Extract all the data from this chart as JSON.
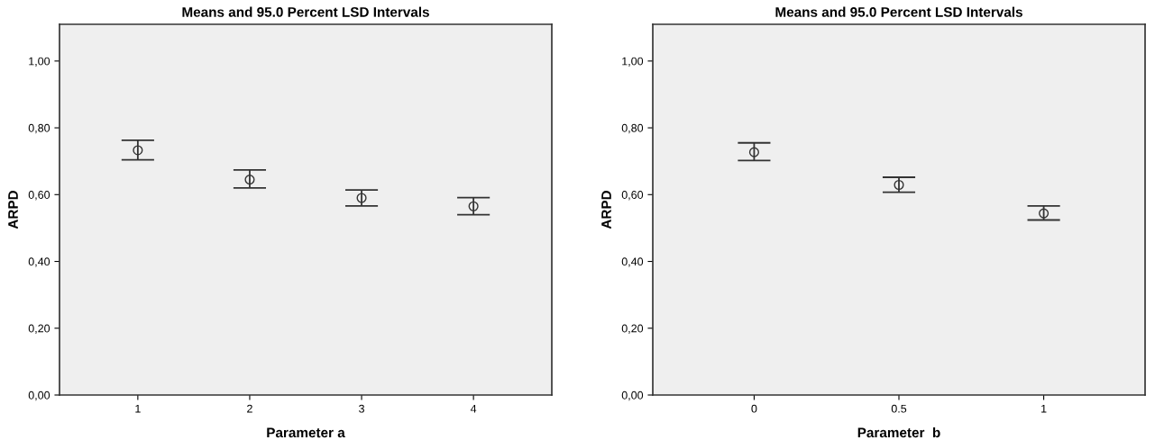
{
  "chart_data": [
    {
      "type": "scatter",
      "title": "Means and 95.0 Percent LSD Intervals",
      "xlabel": "Parameter a",
      "ylabel": "ARPD",
      "categories": [
        "1",
        "2",
        "3",
        "4"
      ],
      "series": [
        {
          "color": "#333333",
          "values": [
            0.733,
            0.645,
            0.59,
            0.565
          ],
          "errors": [
            [
              0.704,
              0.763
            ],
            [
              0.62,
              0.674
            ],
            [
              0.566,
              0.614
            ],
            [
              0.54,
              0.591
            ]
          ]
        }
      ],
      "ylim": [
        0,
        1.11
      ],
      "yticks": [
        {
          "value": 0,
          "label": "0,00"
        },
        {
          "value": 0.2,
          "label": "0,20"
        },
        {
          "value": 0.4,
          "label": "0,40"
        },
        {
          "value": 0.6,
          "label": "0,60"
        },
        {
          "value": 0.8,
          "label": "0,80"
        },
        {
          "value": 1.0,
          "label": "1,00"
        }
      ],
      "marker": "circle",
      "grid": false
    },
    {
      "type": "scatter",
      "title": "Means and 95.0 Percent LSD Intervals",
      "xlabel": "Parameter  b",
      "ylabel": "ARPD",
      "categories": [
        "0",
        "0.5",
        "1"
      ],
      "series": [
        {
          "color": "#333333",
          "values": [
            0.727,
            0.629,
            0.544
          ],
          "errors": [
            [
              0.702,
              0.755
            ],
            [
              0.607,
              0.652
            ],
            [
              0.524,
              0.566
            ]
          ]
        }
      ],
      "ylim": [
        0,
        1.11
      ],
      "yticks": [
        {
          "value": 0,
          "label": "0,00"
        },
        {
          "value": 0.2,
          "label": "0,20"
        },
        {
          "value": 0.4,
          "label": "0,40"
        },
        {
          "value": 0.6,
          "label": "0,60"
        },
        {
          "value": 0.8,
          "label": "0,80"
        },
        {
          "value": 1.0,
          "label": "1,00"
        }
      ],
      "marker": "circle",
      "grid": false
    }
  ]
}
